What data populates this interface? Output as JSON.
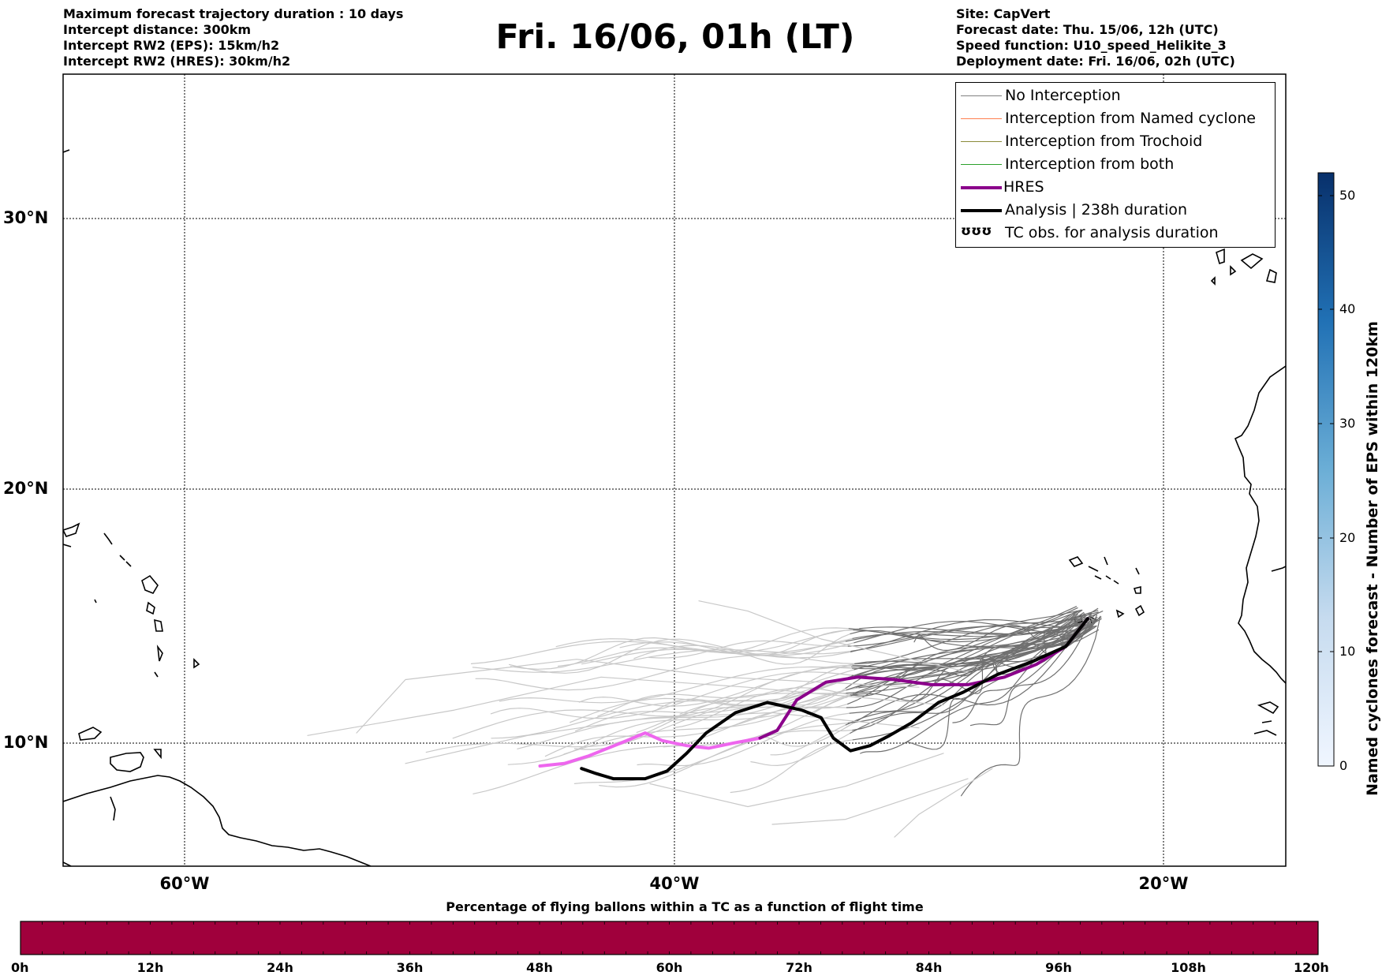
{
  "header": {
    "info_left": [
      "Maximum forecast trajectory duration : 10 days",
      "Intercept distance: 300km",
      "Intercept RW2 (EPS):  15km/h2",
      "Intercept RW2 (HRES): 30km/h2"
    ],
    "title": "Fri. 16/06, 01h (LT)",
    "info_right": [
      "Site: CapVert",
      "Forecast date: Thu. 15/06, 12h (UTC)",
      "Speed function: U10_speed_Helikite_3",
      "Deployment date: Fri. 16/06, 02h (UTC)"
    ]
  },
  "map": {
    "lon_range": [
      -65,
      -15
    ],
    "lat_range": [
      5.5,
      34.8
    ],
    "lon_labels": [
      "60°W",
      "40°W",
      "20°W"
    ],
    "lat_labels": [
      "30°N",
      "20°N",
      "10°N"
    ],
    "gridlines": "dotted",
    "land_style": "black coastline outline",
    "colors": {
      "no_interception": "#808080",
      "named_cyclone": "#ff7f50",
      "trochoid": "#8b8b3a",
      "both": "#2ca02c",
      "hres": "#8b008b",
      "hres_early": "#ee66ee",
      "analysis": "#000000",
      "eps_early": "#c8c8c8",
      "eps_late": "#707070"
    }
  },
  "legend": {
    "items": [
      {
        "label": "No Interception",
        "color": "#808080"
      },
      {
        "label": "Interception from Named cyclone",
        "color": "#ff7f50"
      },
      {
        "label": "Interception from Trochoid",
        "color": "#8b8b3a"
      },
      {
        "label": "Interception from both",
        "color": "#2ca02c"
      },
      {
        "label": "HRES",
        "color": "#8b008b"
      },
      {
        "label": "Analysis | 238h duration",
        "color": "#000000"
      },
      {
        "label": "TC obs. for analysis duration",
        "symbol": "ʊʊʊ"
      }
    ]
  },
  "colorbar_vertical": {
    "title": "Named cyclones forecast - Number of EPS within 120km",
    "ticks": [
      "0",
      "10",
      "20",
      "30",
      "40",
      "50"
    ],
    "range": [
      0,
      52
    ]
  },
  "colorbar_horizontal": {
    "title": "Percentage of flying ballons within a TC as a function of flight time",
    "ticks": [
      "0h",
      "12h",
      "24h",
      "36h",
      "48h",
      "60h",
      "72h",
      "84h",
      "96h",
      "108h",
      "120h"
    ],
    "fill_color": "#a0003c"
  }
}
